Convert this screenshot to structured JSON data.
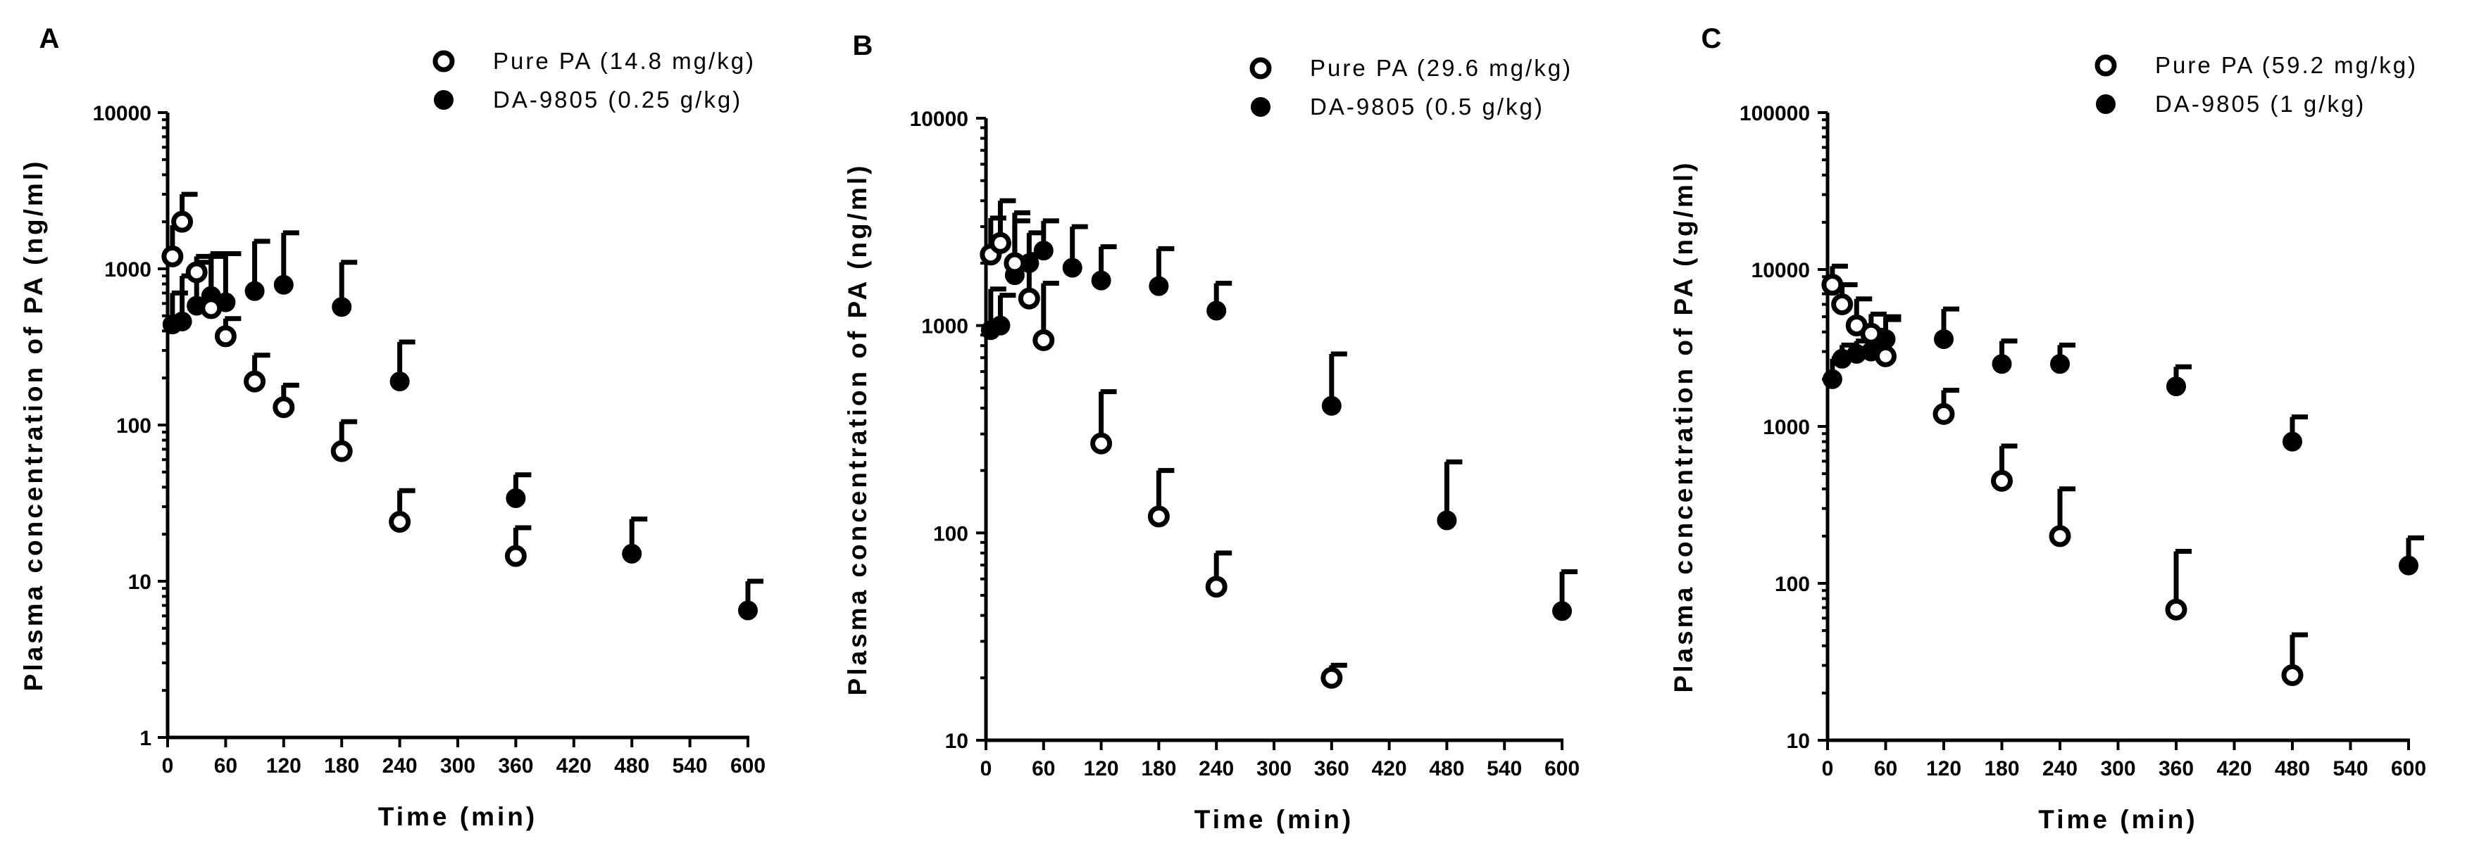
{
  "chart_data": [
    {
      "type": "scatter",
      "panel_label": "A",
      "xlabel": "Time (min)",
      "ylabel": "Plasma concentration of PA (ng/ml)",
      "yscale": "log",
      "xlim": [
        0,
        600
      ],
      "ylim": [
        1,
        10000
      ],
      "xticks": [
        0,
        60,
        120,
        180,
        240,
        300,
        360,
        420,
        480,
        540,
        600
      ],
      "yticks": [
        1,
        10,
        100,
        1000,
        10000
      ],
      "series": [
        {
          "name": "Pure PA (14.8 mg/kg)",
          "marker": "open-circle",
          "x": [
            5,
            15,
            30,
            45,
            60,
            90,
            120,
            180,
            240,
            360
          ],
          "y": [
            1200,
            2000,
            950,
            560,
            370,
            190,
            130,
            68,
            24,
            14.5
          ],
          "err_upper": [
            1900,
            3000,
            1200,
            1200,
            480,
            280,
            180,
            105,
            38,
            22
          ]
        },
        {
          "name": "DA-9805 (0.25 g/kg)",
          "marker": "filled-circle",
          "x": [
            5,
            15,
            30,
            45,
            60,
            90,
            120,
            180,
            240,
            360,
            480,
            600
          ],
          "y": [
            440,
            460,
            580,
            670,
            610,
            720,
            790,
            570,
            190,
            34,
            15,
            6.5
          ],
          "err_upper": [
            700,
            900,
            1100,
            1250,
            1250,
            1500,
            1700,
            1100,
            340,
            48,
            25,
            10
          ]
        }
      ]
    },
    {
      "type": "scatter",
      "panel_label": "B",
      "xlabel": "Time (min)",
      "ylabel": "Plasma concentration of PA (ng/ml)",
      "yscale": "log",
      "xlim": [
        0,
        600
      ],
      "ylim": [
        10,
        10000
      ],
      "xticks": [
        0,
        60,
        120,
        180,
        240,
        300,
        360,
        420,
        480,
        540,
        600
      ],
      "yticks": [
        10,
        100,
        1000,
        10000
      ],
      "series": [
        {
          "name": "Pure PA (29.6 mg/kg)",
          "marker": "open-circle",
          "x": [
            5,
            15,
            30,
            45,
            60,
            120,
            180,
            240,
            360
          ],
          "y": [
            2200,
            2500,
            2000,
            1350,
            850,
            270,
            120,
            55,
            20
          ],
          "err_upper": [
            3300,
            4000,
            3200,
            2200,
            1600,
            480,
            200,
            80,
            23
          ]
        },
        {
          "name": "DA-9805 (0.5 g/kg)",
          "marker": "filled-circle",
          "x": [
            5,
            15,
            30,
            45,
            60,
            90,
            120,
            180,
            240,
            360,
            480,
            600
          ],
          "y": [
            950,
            1000,
            1750,
            2000,
            2300,
            1900,
            1650,
            1550,
            1180,
            410,
            115,
            42
          ],
          "err_upper": [
            1500,
            1400,
            3500,
            2800,
            3200,
            3000,
            2400,
            2350,
            1600,
            730,
            220,
            65
          ]
        }
      ]
    },
    {
      "type": "scatter",
      "panel_label": "C",
      "xlabel": "Time (min)",
      "ylabel": "Plasma concentration of PA (ng/ml)",
      "yscale": "log",
      "xlim": [
        0,
        600
      ],
      "ylim": [
        10,
        100000
      ],
      "xticks": [
        0,
        60,
        120,
        180,
        240,
        300,
        360,
        420,
        480,
        540,
        600
      ],
      "yticks": [
        10,
        100,
        1000,
        10000,
        100000
      ],
      "series": [
        {
          "name": "Pure PA (59.2 mg/kg)",
          "marker": "open-circle",
          "x": [
            5,
            15,
            30,
            45,
            60,
            120,
            180,
            240,
            360,
            480
          ],
          "y": [
            8000,
            6000,
            4400,
            3900,
            2800,
            1200,
            450,
            200,
            68,
            26
          ],
          "err_upper": [
            10500,
            8000,
            6500,
            5200,
            4800,
            1700,
            750,
            400,
            160,
            47
          ]
        },
        {
          "name": "DA-9805 (1 g/kg)",
          "marker": "filled-circle",
          "x": [
            5,
            15,
            30,
            45,
            60,
            120,
            180,
            240,
            360,
            480,
            600
          ],
          "y": [
            2000,
            2700,
            2900,
            3000,
            3600,
            3600,
            2500,
            2500,
            1800,
            800,
            130
          ],
          "err_upper": [
            2700,
            3300,
            3500,
            4100,
            5000,
            5600,
            3500,
            3300,
            2400,
            1150,
            195
          ]
        }
      ]
    }
  ]
}
